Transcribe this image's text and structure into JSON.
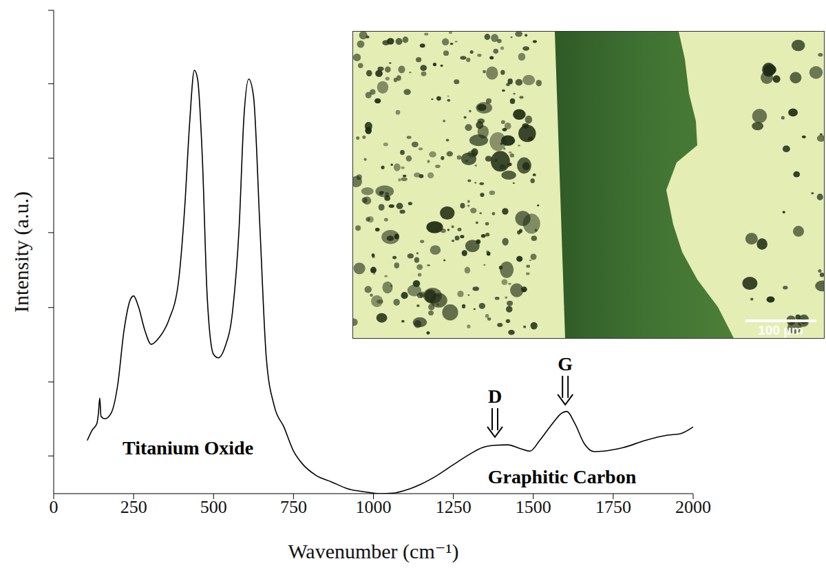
{
  "chart_data": {
    "type": "line",
    "x_label": "Wavenumber (cm⁻¹)",
    "y_label": "Intensity (a.u.)",
    "x": [
      105,
      120,
      135,
      140,
      144,
      148,
      160,
      180,
      200,
      220,
      240,
      250,
      265,
      285,
      305,
      330,
      360,
      390,
      410,
      425,
      440,
      450,
      465,
      480,
      500,
      515,
      535,
      560,
      580,
      595,
      610,
      625,
      645,
      665,
      690,
      720,
      750,
      780,
      820,
      870,
      920,
      970,
      1020,
      1060,
      1100,
      1150,
      1200,
      1250,
      1300,
      1340,
      1380,
      1420,
      1460,
      1490,
      1520,
      1560,
      1590,
      1605,
      1630,
      1660,
      1690,
      1720,
      1780,
      1850,
      1920,
      1960,
      2000
    ],
    "values": [
      11.0,
      13.1,
      14.5,
      16.7,
      19.8,
      16.0,
      15.5,
      16.7,
      22.4,
      33.8,
      40.2,
      40.9,
      38.7,
      33.8,
      30.9,
      32.3,
      35.9,
      43.7,
      59.4,
      76.5,
      87.6,
      85.8,
      69.4,
      40.9,
      28.8,
      28.1,
      30.2,
      38.0,
      55.1,
      77.9,
      85.8,
      82.2,
      55.1,
      28.1,
      18.1,
      13.8,
      8.8,
      6.0,
      3.8,
      2.4,
      1.0,
      0.4,
      0.0,
      0.1,
      0.7,
      2.0,
      3.8,
      6.0,
      8.1,
      9.5,
      10.0,
      10.1,
      9.3,
      8.8,
      11.0,
      14.5,
      16.7,
      17.0,
      14.5,
      10.3,
      8.7,
      8.8,
      9.5,
      11.0,
      12.1,
      12.4,
      13.8
    ],
    "color": "#000000",
    "xlim": [
      0,
      2000
    ],
    "xticks": [
      0,
      250,
      500,
      750,
      1000,
      1250,
      1500,
      1750,
      2000
    ],
    "ylim": [
      0,
      100
    ],
    "yticks": [
      7.8,
      23.1,
      38.5,
      54.0,
      69.4,
      84.8,
      100
    ],
    "tick_labels": "x",
    "grid": false,
    "annotations": [
      {
        "text": "Titanium Oxide",
        "x": 420,
        "y": 9.5
      },
      {
        "text": "Graphitic Carbon",
        "x": 1590,
        "y": 3.5
      },
      {
        "text": "D",
        "x": 1380,
        "y": 11.7,
        "marker": "arrow"
      },
      {
        "text": "G",
        "x": 1600,
        "y": 18.4,
        "marker": "arrow"
      }
    ]
  },
  "inset": {
    "scale_bar": "100 μm"
  }
}
